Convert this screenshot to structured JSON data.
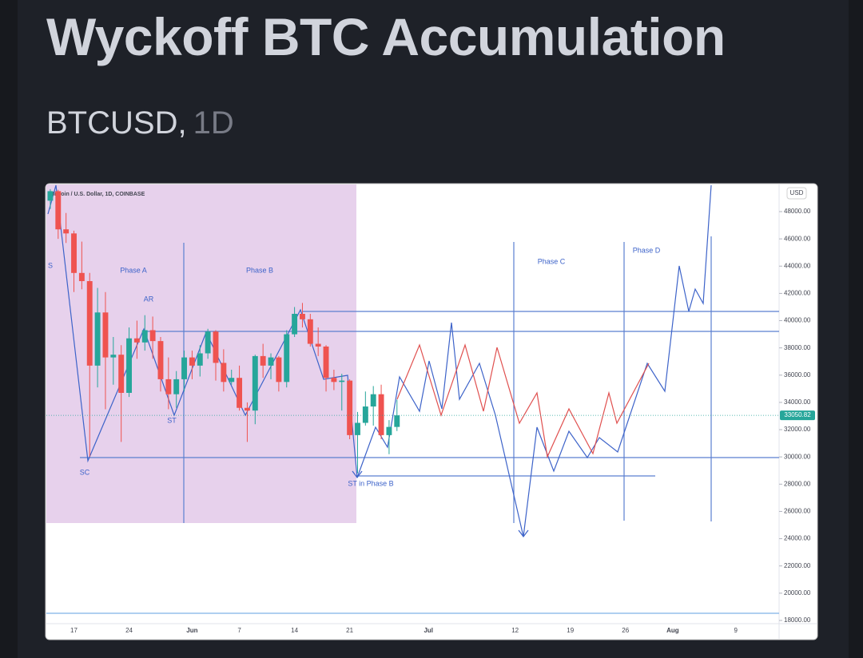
{
  "header": {
    "title": "Wyckoff BTC Accumulation",
    "symbol": "BTCUSD,",
    "interval": "1D"
  },
  "chart_data": {
    "type": "candlestick",
    "title": "Bitcoin / U.S. Dollar, 1D, COINBASE",
    "currency": "USD",
    "up_color": "#26a69a",
    "down_color": "#ef5350",
    "last_price": 33050.82,
    "categories": [
      null,
      null,
      null,
      "17",
      null,
      null,
      null,
      null,
      null,
      null,
      "24",
      null,
      null,
      null,
      null,
      null,
      null,
      null,
      "Jun",
      null,
      null,
      null,
      null,
      null,
      "7",
      null,
      null,
      null,
      null,
      null,
      null,
      "14",
      null,
      null,
      null,
      null,
      null,
      null,
      "21",
      null,
      null,
      null,
      null,
      null,
      null,
      null,
      null,
      null,
      "Jul",
      null,
      null,
      null,
      null,
      null,
      null,
      null,
      null,
      null,
      null,
      "12",
      null,
      null,
      null,
      null,
      null,
      null,
      "19",
      null,
      null,
      null,
      null,
      null,
      null,
      "26",
      null,
      null,
      null,
      null,
      null,
      "Aug",
      null,
      null,
      null,
      null,
      null,
      null,
      null,
      "9",
      null,
      null,
      null,
      null,
      null
    ],
    "open": [
      48800,
      49500,
      46700,
      46400,
      43500,
      42900,
      36700,
      40600,
      37300,
      37500,
      34700,
      38700,
      38400,
      39300,
      38500,
      35700,
      34600,
      35700,
      37300,
      36700,
      37600,
      39200,
      36900,
      35500,
      35800,
      33600,
      33400,
      37400,
      36700,
      37300,
      35500,
      39000,
      40500,
      40100,
      38300,
      38100,
      35800,
      35500,
      35600,
      31600,
      32500,
      33700,
      34600,
      31600,
      32200,
      null,
      null,
      null,
      null,
      null,
      null,
      null,
      null,
      null,
      null,
      null,
      null,
      null,
      null,
      null,
      null,
      null,
      null,
      null,
      null,
      null,
      null,
      null,
      null,
      null,
      null,
      null,
      null,
      null,
      null,
      null,
      null,
      null,
      null,
      null,
      null,
      null,
      null,
      null,
      null,
      null,
      null,
      null,
      null,
      null,
      null,
      null,
      null
    ],
    "high": [
      49650,
      49600,
      47900,
      46600,
      45800,
      43500,
      42400,
      42100,
      38800,
      38200,
      39500,
      40000,
      40400,
      40300,
      38800,
      37300,
      36300,
      37800,
      37800,
      38200,
      39400,
      39300,
      37900,
      36400,
      36700,
      34000,
      37500,
      38300,
      37600,
      37400,
      39300,
      41000,
      41300,
      40500,
      39500,
      38200,
      36400,
      36100,
      35700,
      33300,
      34800,
      35200,
      35300,
      32700,
      34200,
      null,
      null,
      null,
      null,
      null,
      null,
      null,
      null,
      null,
      null,
      null,
      null,
      null,
      null,
      null,
      null,
      null,
      null,
      null,
      null,
      null,
      null,
      null,
      null,
      null,
      null,
      null,
      null,
      null,
      null,
      null,
      null,
      null,
      null,
      null,
      null,
      null,
      null,
      null,
      null,
      null,
      null,
      null,
      null,
      null,
      null,
      null,
      null
    ],
    "low": [
      48200,
      46000,
      45700,
      42100,
      42300,
      30000,
      35100,
      33500,
      35300,
      31100,
      34400,
      37200,
      37800,
      37200,
      34800,
      33500,
      33600,
      34800,
      35700,
      35900,
      37200,
      35600,
      34800,
      35300,
      33400,
      31100,
      32400,
      35800,
      35700,
      34800,
      35100,
      38800,
      39500,
      38100,
      37400,
      34800,
      34900,
      33400,
      31300,
      28800,
      32300,
      32300,
      31300,
      30200,
      31900,
      null,
      null,
      null,
      null,
      null,
      null,
      null,
      null,
      null,
      null,
      null,
      null,
      null,
      null,
      null,
      null,
      null,
      null,
      null,
      null,
      null,
      null,
      null,
      null,
      null,
      null,
      null,
      null,
      null,
      null,
      null,
      null,
      null,
      null,
      null,
      null,
      null,
      null,
      null,
      null,
      null,
      null,
      null,
      null,
      null,
      null,
      null,
      null
    ],
    "close": [
      49500,
      46700,
      46400,
      43500,
      42900,
      36700,
      40600,
      37300,
      37500,
      34700,
      38700,
      38400,
      39300,
      38500,
      35700,
      34600,
      35700,
      37300,
      36700,
      37600,
      39200,
      36900,
      35500,
      35800,
      33600,
      33400,
      37400,
      36700,
      37300,
      35500,
      39000,
      40500,
      40100,
      38300,
      38100,
      35800,
      35500,
      35600,
      31600,
      32500,
      33700,
      34600,
      31600,
      32200,
      33050.82,
      null,
      null,
      null,
      null,
      null,
      null,
      null,
      null,
      null,
      null,
      null,
      null,
      null,
      null,
      null,
      null,
      null,
      null,
      null,
      null,
      null,
      null,
      null,
      null,
      null,
      null,
      null,
      null,
      null,
      null,
      null,
      null,
      null,
      null,
      null,
      null,
      null,
      null,
      null,
      null,
      null,
      null,
      null,
      null,
      null,
      null,
      null,
      null
    ],
    "ylim": [
      17500,
      49700
    ],
    "yticks": [
      {
        "value": 18000,
        "label": "18000.00"
      },
      {
        "value": 20000,
        "label": "20000.00"
      },
      {
        "value": 22000,
        "label": "22000.00"
      },
      {
        "value": 24000,
        "label": "24000.00"
      },
      {
        "value": 26000,
        "label": "26000.00"
      },
      {
        "value": 28000,
        "label": "28000.00"
      },
      {
        "value": 30000,
        "label": "30000.00"
      },
      {
        "value": 32000,
        "label": "32000.00"
      },
      {
        "value": 34000,
        "label": "34000.00"
      },
      {
        "value": 36000,
        "label": "36000.00"
      },
      {
        "value": 38000,
        "label": "38000.00"
      },
      {
        "value": 40000,
        "label": "40000.00"
      },
      {
        "value": 42000,
        "label": "42000.00"
      },
      {
        "value": 44000,
        "label": "44000.00"
      },
      {
        "value": 46000,
        "label": "46000.00"
      },
      {
        "value": 48000,
        "label": "48000.00"
      }
    ],
    "annotations": [
      "Phase A",
      "Phase B",
      "Phase C",
      "Phase D",
      "AR",
      "ST",
      "SC",
      "ST in Phase B",
      "S"
    ]
  }
}
